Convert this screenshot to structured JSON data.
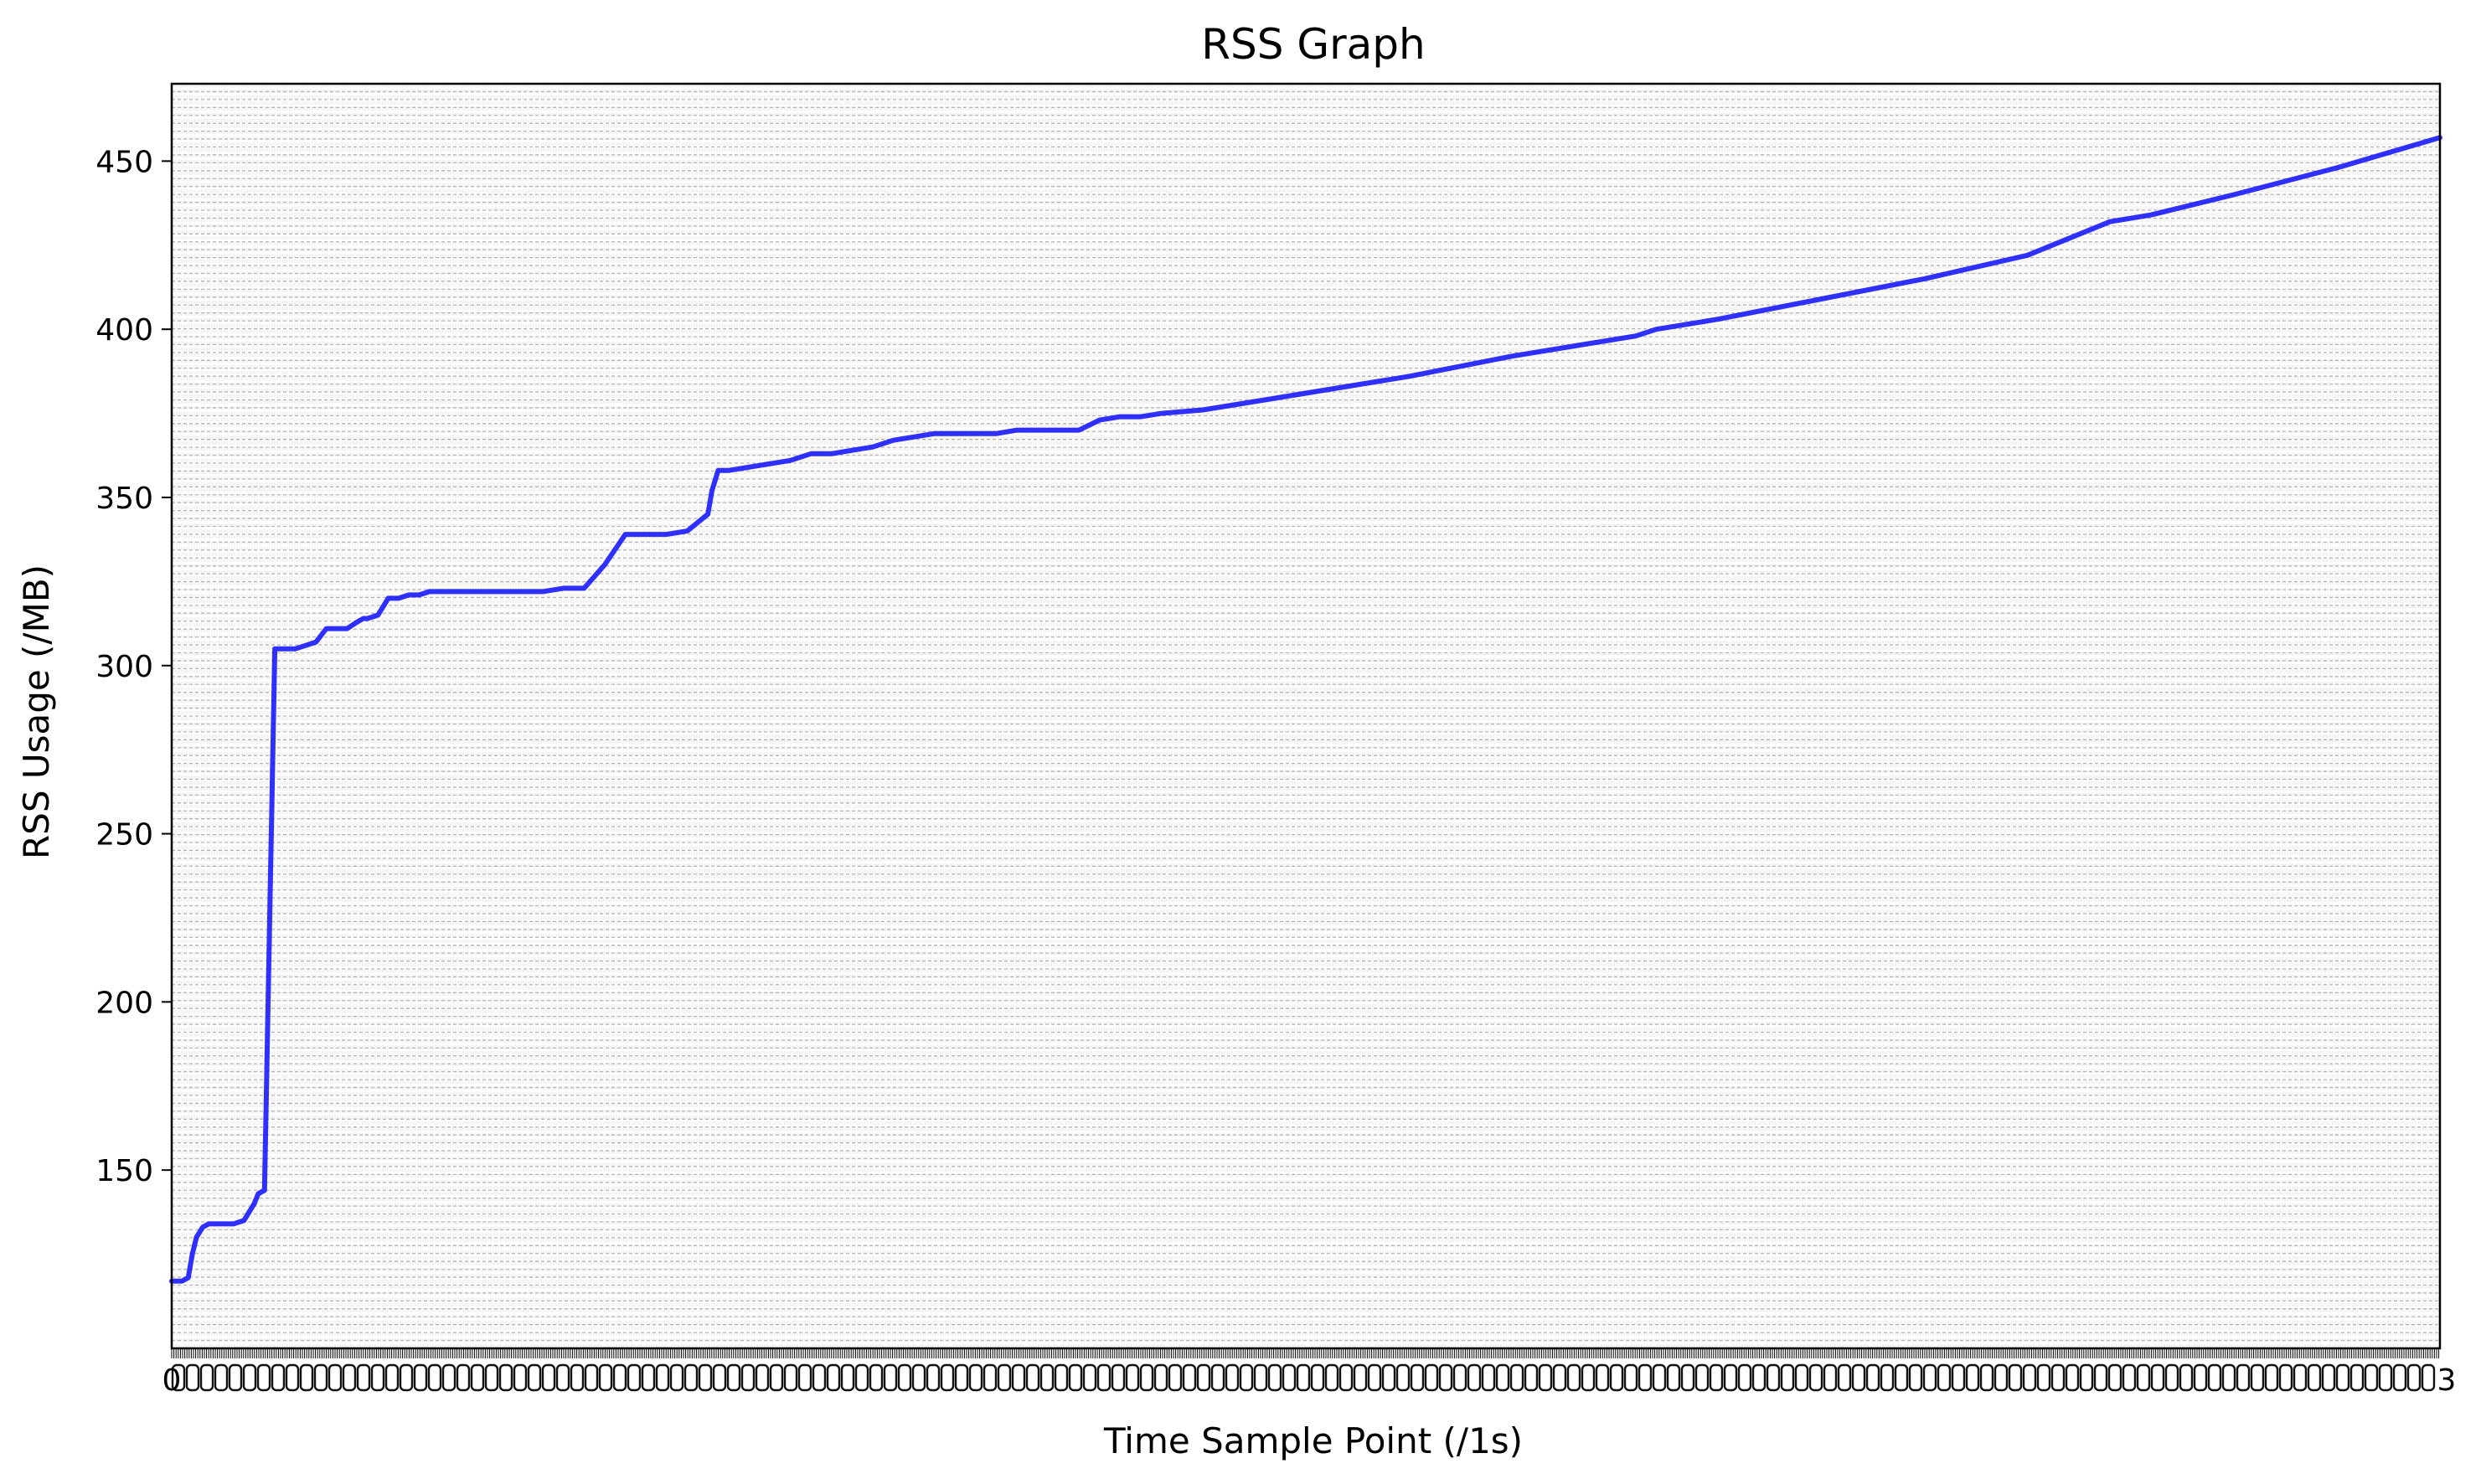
{
  "chart_data": {
    "type": "line",
    "title": "RSS Graph",
    "xlabel": "Time Sample Point (/1s)",
    "ylabel": "RSS Usage (/MB)",
    "xlim": [
      0,
      1100
    ],
    "ylim": [
      97,
      473
    ],
    "y_ticks": [
      150,
      200,
      250,
      300,
      350,
      400,
      450
    ],
    "y_tick_labels": [
      "150",
      "200",
      "250",
      "300",
      "350",
      "400",
      "450"
    ],
    "x_tick_labels_note": "overlapping dense tick labels",
    "x_tick_labels_visible": [
      "0",
      "3"
    ],
    "grid": true,
    "grid_style": "dashed",
    "line_color": "#1a1aff",
    "grid_color": "#b0b0b0",
    "series": [
      {
        "x": [
          0,
          5,
          8,
          10,
          12,
          15,
          18,
          20,
          25,
          30,
          35,
          40,
          42,
          45,
          50,
          53,
          55,
          60,
          65,
          70,
          75,
          80,
          85,
          90,
          93,
          95,
          100,
          105,
          110,
          115,
          120,
          125,
          130,
          140,
          150,
          160,
          170,
          180,
          190,
          200,
          210,
          220,
          230,
          240,
          250,
          260,
          262,
          265,
          270,
          280,
          290,
          300,
          310,
          320,
          330,
          340,
          350,
          360,
          370,
          380,
          390,
          400,
          410,
          420,
          430,
          440,
          450,
          460,
          470,
          480,
          500,
          550,
          600,
          650,
          700,
          710,
          720,
          750,
          800,
          850,
          900,
          940,
          960,
          1000,
          1050,
          1100
        ],
        "y": [
          117,
          117,
          118,
          125,
          130,
          133,
          134,
          134,
          134,
          134,
          135,
          140,
          143,
          144,
          305,
          305,
          305,
          305,
          306,
          307,
          311,
          311,
          311,
          313,
          314,
          314,
          315,
          320,
          320,
          321,
          321,
          322,
          322,
          322,
          322,
          322,
          322,
          322,
          323,
          323,
          330,
          339,
          339,
          339,
          340,
          345,
          352,
          358,
          358,
          359,
          360,
          361,
          363,
          363,
          364,
          365,
          367,
          368,
          369,
          369,
          369,
          369,
          370,
          370,
          370,
          370,
          373,
          374,
          374,
          375,
          376,
          381,
          386,
          392,
          397,
          398,
          400,
          403,
          409,
          415,
          422,
          432,
          434,
          440,
          448,
          457
        ]
      }
    ]
  }
}
